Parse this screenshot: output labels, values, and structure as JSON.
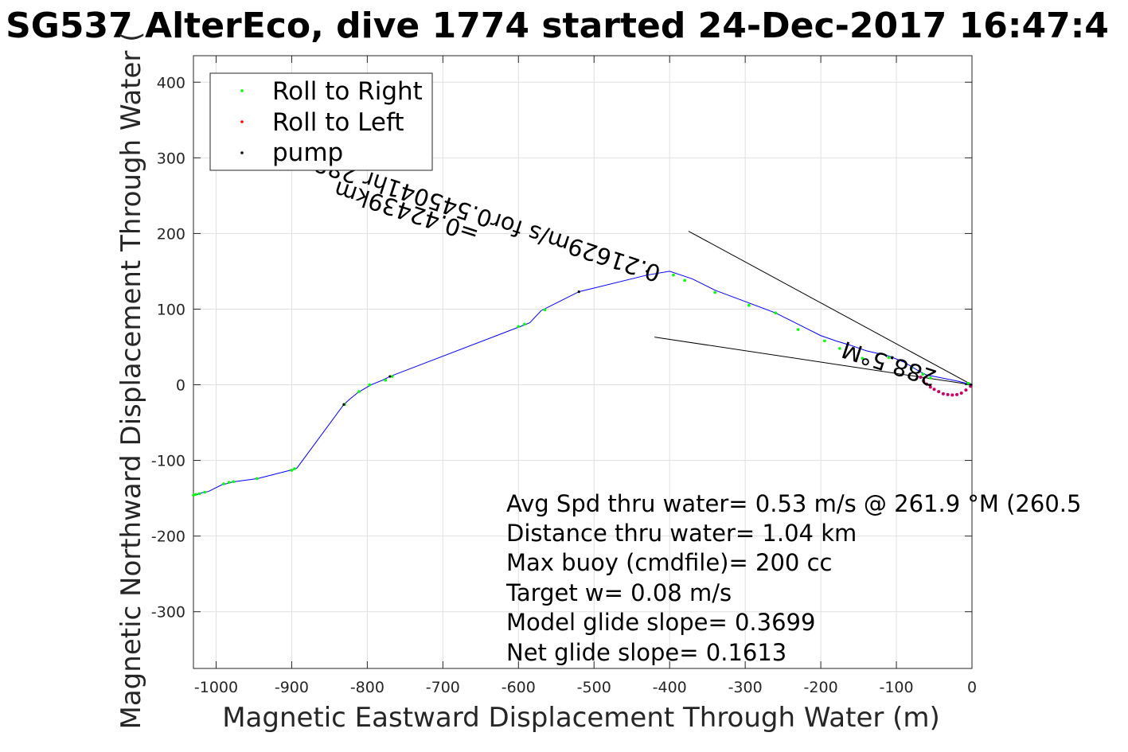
{
  "chart_data": {
    "type": "line",
    "title": "SG537 AlterEco, dive 1774 started 24-Dec-2017 16:47:4",
    "xlabel": "Magnetic Eastward Displacement Through Water (m)",
    "ylabel": "Magnetic Northward Displacement Through Water (",
    "xlim": [
      -1030,
      0
    ],
    "ylim": [
      -375,
      435
    ],
    "xticks": [
      -1000,
      -900,
      -800,
      -700,
      -600,
      -500,
      -400,
      -300,
      -200,
      -100,
      0
    ],
    "xtick_labels": [
      "-1000",
      "-900",
      "-800",
      "-700",
      "-600",
      "-500",
      "-400",
      "-300",
      "-200",
      "-100",
      "0"
    ],
    "yticks": [
      -300,
      -200,
      -100,
      0,
      100,
      200,
      300,
      400
    ],
    "ytick_labels": [
      "-300",
      "-200",
      "-100",
      "0",
      "100",
      "200",
      "300",
      "400"
    ],
    "grid": true,
    "legend": {
      "placement": "top-left",
      "entries": [
        {
          "label": "Roll to Right",
          "color": "#00ff00"
        },
        {
          "label": "Roll to Left",
          "color": "#ff0000"
        },
        {
          "label": "pump",
          "color": "#000000"
        }
      ]
    },
    "series": [
      {
        "color": "#0000ff",
        "x": [
          0,
          -20,
          -45,
          -60,
          -70,
          -90,
          -110,
          -140,
          -160,
          -180,
          -200,
          -230,
          -260,
          -300,
          -340,
          -370,
          -400,
          -430,
          -520,
          -570,
          -585,
          -595,
          -770,
          -780,
          -795,
          -812,
          -822,
          -831,
          -893,
          -898,
          -945,
          -975,
          -980,
          -987,
          -992,
          -1010,
          -1020,
          -1025,
          -1030
        ],
        "y": [
          0,
          5,
          10,
          13,
          18,
          30,
          38,
          45,
          52,
          58,
          65,
          80,
          95,
          110,
          125,
          140,
          150,
          145,
          123,
          98,
          82,
          78,
          11,
          6,
          0,
          -10,
          -18,
          -26,
          -110,
          -112,
          -124,
          -128,
          -129,
          -131,
          -132,
          -141,
          -143,
          -145,
          -146
        ]
      }
    ],
    "markers": {
      "roll_right": {
        "color": "#00ff00",
        "x": [
          -5,
          -55,
          -65,
          -80,
          -110,
          -145,
          -175,
          -195,
          -230,
          -260,
          -295,
          -340,
          -380,
          -395,
          -565,
          -592,
          -600,
          -767,
          -776,
          -797,
          -811,
          -830,
          -896,
          -900,
          -946,
          -977,
          -983,
          -990,
          -1015,
          -1022,
          -1027,
          -1030
        ],
        "y": [
          2,
          9,
          14,
          22,
          36,
          35,
          48,
          58,
          73,
          95,
          105,
          122,
          138,
          145,
          99,
          80,
          77,
          11,
          6,
          0,
          -9,
          -26,
          -111,
          -113,
          -124,
          -128,
          -129,
          -131,
          -142,
          -144,
          -145,
          -146
        ]
      },
      "roll_left": {
        "color": "#cc0066",
        "x": [
          -2,
          -8,
          -14,
          -20,
          -26,
          -32,
          -38,
          -44,
          -50,
          -55,
          -60,
          -64,
          -68
        ],
        "y": [
          -2,
          -7,
          -11,
          -13,
          -13.5,
          -13,
          -12,
          -9,
          -6,
          -3,
          1,
          5,
          10
        ]
      },
      "pump": {
        "color": "#000000",
        "x": [
          -1,
          -520,
          -430,
          -770,
          -831
        ],
        "y": [
          0,
          123,
          150,
          11,
          -26
        ]
      }
    },
    "heading_lines": [
      {
        "x": [
          0,
          -375
        ],
        "y": [
          0,
          203
        ]
      },
      {
        "x": [
          0,
          -420
        ],
        "y": [
          0,
          63
        ]
      }
    ],
    "rotated_annotations": [
      {
        "text": "0.21629m/s for0.545041hr 288.5°M",
        "x": -410,
        "y": 156,
        "angle_deg": 198
      },
      {
        "text": "288.5°M",
        "x": -45,
        "y": 18,
        "angle_deg": 198
      },
      {
        "text": "=0.42439km",
        "x": -650,
        "y": 208,
        "angle_deg": 198
      }
    ],
    "annotations": [
      "Avg Spd thru water=  0.53 m/s @ 261.9 °M (260.5",
      "Distance thru water=  1.04 km",
      "Max buoy (cmdfile)= 200 cc",
      "Target w= 0.08 m/s",
      "Model glide slope= 0.3699",
      "Net glide slope= 0.1613"
    ]
  }
}
